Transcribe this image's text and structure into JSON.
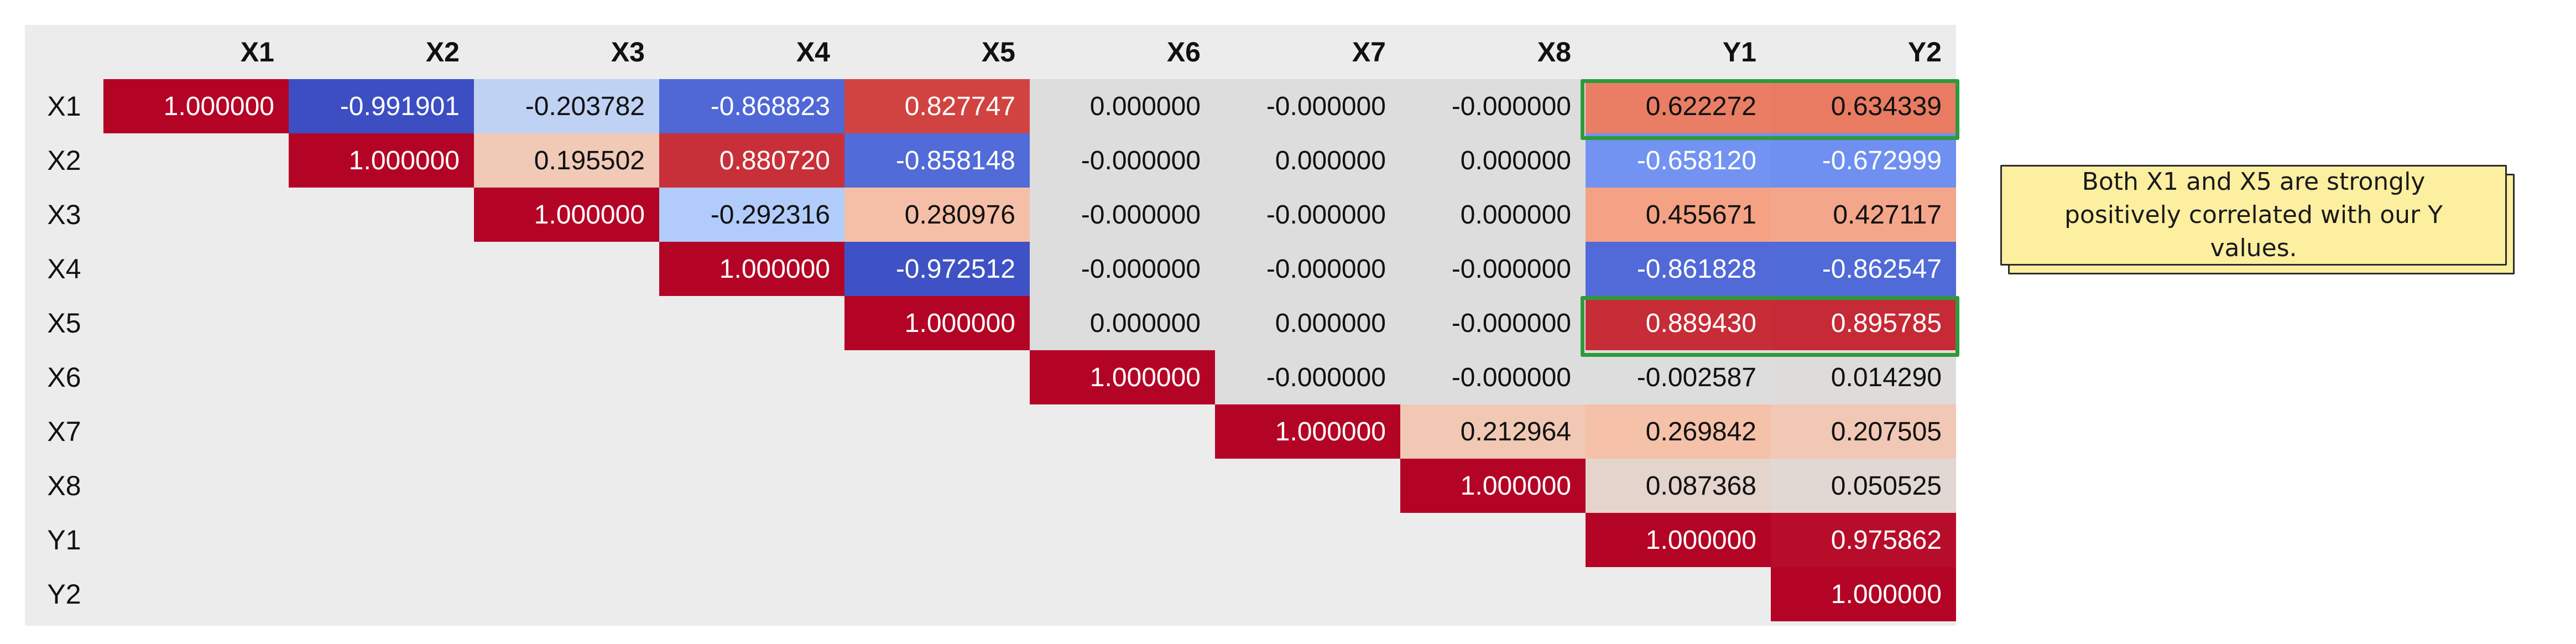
{
  "chart_data": {
    "type": "heatmap",
    "colormap": "coolwarm",
    "mask": "lower-triangle",
    "vmin": -1,
    "vmax": 1,
    "columns": [
      "X1",
      "X2",
      "X3",
      "X4",
      "X5",
      "X6",
      "X7",
      "X8",
      "Y1",
      "Y2"
    ],
    "rows": [
      "X1",
      "X2",
      "X3",
      "X4",
      "X5",
      "X6",
      "X7",
      "X8",
      "Y1",
      "Y2"
    ],
    "cells": [
      [
        "1.000000",
        "-0.991901",
        "-0.203782",
        "-0.868823",
        "0.827747",
        "0.000000",
        "-0.000000",
        "-0.000000",
        "0.622272",
        "0.634339"
      ],
      [
        "",
        "1.000000",
        "0.195502",
        "0.880720",
        "-0.858148",
        "-0.000000",
        "0.000000",
        "0.000000",
        "-0.658120",
        "-0.672999"
      ],
      [
        "",
        "",
        "1.000000",
        "-0.292316",
        "0.280976",
        "-0.000000",
        "-0.000000",
        "0.000000",
        "0.455671",
        "0.427117"
      ],
      [
        "",
        "",
        "",
        "1.000000",
        "-0.972512",
        "-0.000000",
        "-0.000000",
        "-0.000000",
        "-0.861828",
        "-0.862547"
      ],
      [
        "",
        "",
        "",
        "",
        "1.000000",
        "0.000000",
        "0.000000",
        "-0.000000",
        "0.889430",
        "0.895785"
      ],
      [
        "",
        "",
        "",
        "",
        "",
        "1.000000",
        "-0.000000",
        "-0.000000",
        "-0.002587",
        "0.014290"
      ],
      [
        "",
        "",
        "",
        "",
        "",
        "",
        "1.000000",
        "0.212964",
        "0.269842",
        "0.207505"
      ],
      [
        "",
        "",
        "",
        "",
        "",
        "",
        "",
        "1.000000",
        "0.087368",
        "0.050525"
      ],
      [
        "",
        "",
        "",
        "",
        "",
        "",
        "",
        "",
        "1.000000",
        "0.975862"
      ],
      [
        "",
        "",
        "",
        "",
        "",
        "",
        "",
        "",
        "",
        "1.000000"
      ]
    ],
    "highlighted_rows": [
      "X1",
      "X5"
    ],
    "highlighted_columns": [
      "Y1",
      "Y2"
    ],
    "highlight_color": "#2e9a3c"
  },
  "annotation": {
    "text": "Both X1 and X5 are strongly positively correlated with our Y values."
  }
}
